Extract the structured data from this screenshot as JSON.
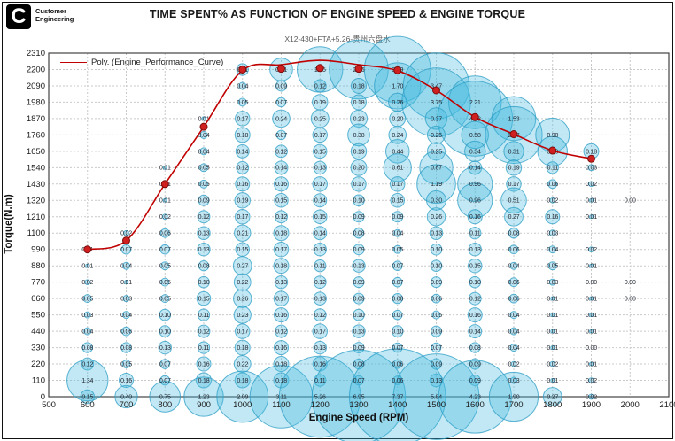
{
  "logo": {
    "glyph": "C",
    "line1": "Customer",
    "line2": "Engineering"
  },
  "title": "TIME SPENT% AS FUNCTION OF ENGINE SPEED & ENGINE TORQUE",
  "subtitle": "X12-430+FTA+5.26-贵州六盘水",
  "legend": {
    "label": "Poly. (Engine_Performance_Curve)"
  },
  "chart_data": {
    "type": "scatter",
    "subtype": "bubble",
    "title": "TIME SPENT% AS FUNCTION OF ENGINE SPEED & ENGINE TORQUE",
    "xlabel": "Engine Speed (RPM)",
    "ylabel": "Torque(N.m)",
    "xlim": [
      500,
      2100
    ],
    "ylim": [
      0,
      2310
    ],
    "grid": "dashed both axes",
    "legend_position": "top-left inside plot",
    "x_ticks": [
      500,
      600,
      700,
      800,
      900,
      1000,
      1100,
      1200,
      1300,
      1400,
      1500,
      1600,
      1700,
      1800,
      1900,
      2000,
      2100
    ],
    "y_ticks": [
      0,
      110,
      220,
      330,
      440,
      550,
      660,
      770,
      880,
      990,
      1100,
      1210,
      1320,
      1430,
      1540,
      1650,
      1760,
      1870,
      1980,
      2090,
      2200,
      2310
    ],
    "columns_rpm": [
      600,
      700,
      800,
      900,
      1000,
      1100,
      1200,
      1300,
      1400,
      1500,
      1600,
      1700,
      1800,
      1900,
      2000
    ],
    "rows_torque": [
      2310,
      2200,
      2090,
      1980,
      1870,
      1760,
      1650,
      1540,
      1430,
      1320,
      1210,
      1100,
      990,
      880,
      770,
      660,
      550,
      440,
      330,
      220,
      110,
      0
    ],
    "values": [
      [
        null,
        null,
        null,
        null,
        null,
        null,
        null,
        null,
        null,
        null,
        null,
        null,
        null,
        null,
        null
      ],
      [
        null,
        null,
        null,
        null,
        0.11,
        0.41,
        1.65,
        2.76,
        3.49,
        null,
        null,
        null,
        null,
        null,
        null
      ],
      [
        null,
        null,
        null,
        null,
        0.04,
        0.09,
        0.12,
        0.18,
        1.7,
        3.47,
        null,
        null,
        null,
        null,
        null
      ],
      [
        null,
        null,
        null,
        null,
        0.05,
        0.07,
        0.19,
        0.18,
        0.26,
        3.75,
        2.21,
        null,
        null,
        null,
        null
      ],
      [
        null,
        null,
        null,
        0.01,
        0.17,
        0.24,
        0.25,
        0.23,
        0.2,
        0.37,
        4.48,
        1.53,
        null,
        null,
        null
      ],
      [
        null,
        null,
        null,
        0.04,
        0.18,
        0.07,
        0.17,
        0.38,
        0.24,
        0.25,
        0.58,
        2.57,
        0.9,
        null,
        null
      ],
      [
        null,
        null,
        null,
        0.04,
        0.14,
        0.12,
        0.15,
        0.19,
        0.44,
        0.25,
        0.34,
        0.31,
        0.7,
        0.18,
        null
      ],
      [
        null,
        null,
        0.01,
        0.05,
        0.12,
        0.14,
        0.13,
        0.2,
        0.61,
        0.87,
        0.14,
        0.19,
        0.11,
        0.03,
        null
      ],
      [
        null,
        null,
        0.01,
        0.05,
        0.16,
        0.16,
        0.17,
        0.17,
        0.17,
        1.19,
        0.96,
        0.17,
        0.06,
        0.02,
        null
      ],
      [
        null,
        null,
        0.01,
        0.09,
        0.19,
        0.15,
        0.14,
        0.1,
        0.15,
        0.3,
        0.96,
        0.51,
        0.02,
        0.01,
        0.0
      ],
      [
        null,
        null,
        0.02,
        0.12,
        0.17,
        0.12,
        0.15,
        0.09,
        0.09,
        0.26,
        0.16,
        0.27,
        0.16,
        0.01,
        null
      ],
      [
        null,
        0.02,
        0.06,
        0.13,
        0.21,
        0.18,
        0.14,
        0.08,
        0.04,
        0.13,
        0.11,
        0.08,
        0.03,
        null,
        null
      ],
      [
        0.01,
        0.07,
        0.07,
        0.13,
        0.15,
        0.17,
        0.13,
        0.09,
        0.05,
        0.1,
        0.13,
        0.06,
        0.04,
        0.02,
        null
      ],
      [
        0.01,
        0.04,
        0.05,
        0.08,
        0.27,
        0.18,
        0.11,
        0.13,
        0.07,
        0.1,
        0.15,
        0.04,
        0.05,
        0.01,
        null
      ],
      [
        0.02,
        0.01,
        0.05,
        0.1,
        0.22,
        0.13,
        0.12,
        0.09,
        0.07,
        0.09,
        0.1,
        0.06,
        0.03,
        0.0,
        0.0
      ],
      [
        0.05,
        0.03,
        0.05,
        0.15,
        0.26,
        0.17,
        0.13,
        0.09,
        0.08,
        0.06,
        0.12,
        0.06,
        0.01,
        0.01,
        0.0
      ],
      [
        0.03,
        0.04,
        0.1,
        0.11,
        0.23,
        0.16,
        0.12,
        0.1,
        0.07,
        0.05,
        0.16,
        0.04,
        0.01,
        0.01,
        null
      ],
      [
        0.04,
        0.06,
        0.1,
        0.12,
        0.17,
        0.12,
        0.17,
        0.13,
        0.1,
        0.09,
        0.14,
        0.04,
        0.01,
        0.01,
        null
      ],
      [
        0.08,
        0.08,
        0.13,
        0.11,
        0.18,
        0.16,
        0.13,
        0.09,
        0.07,
        0.07,
        0.08,
        0.04,
        0.01,
        0.0,
        null
      ],
      [
        0.12,
        0.05,
        0.07,
        0.16,
        0.22,
        0.18,
        0.16,
        0.08,
        0.06,
        0.09,
        0.09,
        0.02,
        0.02,
        0.01,
        null
      ],
      [
        1.34,
        0.16,
        0.07,
        0.18,
        0.18,
        0.18,
        0.11,
        0.07,
        0.06,
        0.13,
        0.09,
        0.03,
        0.01,
        0.02,
        null
      ],
      [
        0.15,
        0.4,
        0.75,
        1.23,
        2.09,
        3.11,
        5.26,
        6.95,
        7.37,
        5.84,
        4.23,
        1.9,
        0.27,
        0.02,
        null
      ]
    ],
    "series": [
      {
        "name": "Poly. (Engine_Performance_Curve)",
        "type": "line",
        "markers": [
          [
            600,
            990
          ],
          [
            700,
            1050
          ],
          [
            800,
            1430
          ],
          [
            900,
            1815
          ],
          [
            1000,
            2200
          ],
          [
            1100,
            2205
          ],
          [
            1200,
            2210
          ],
          [
            1300,
            2205
          ],
          [
            1400,
            2195
          ],
          [
            1500,
            2060
          ],
          [
            1600,
            1880
          ],
          [
            1700,
            1765
          ],
          [
            1800,
            1655
          ],
          [
            1900,
            1600
          ]
        ],
        "path_points": [
          [
            600,
            990
          ],
          [
            700,
            1050
          ],
          [
            800,
            1430
          ],
          [
            900,
            1815
          ],
          [
            1000,
            2195
          ],
          [
            1100,
            2232
          ],
          [
            1200,
            2262
          ],
          [
            1300,
            2232
          ],
          [
            1400,
            2192
          ],
          [
            1500,
            2060
          ],
          [
            1600,
            1880
          ],
          [
            1700,
            1765
          ],
          [
            1800,
            1655
          ],
          [
            1900,
            1600
          ]
        ]
      }
    ],
    "colors": {
      "bubble_fill": "#44b9de",
      "bubble_stroke": "#2a9cc4",
      "curve": "#c00000",
      "marker_fill": "#cf1f1f",
      "marker_stroke": "#7a0c0c",
      "grid": "#c9c9c9",
      "axis": "#444444",
      "value_label": "#1f2430"
    }
  }
}
